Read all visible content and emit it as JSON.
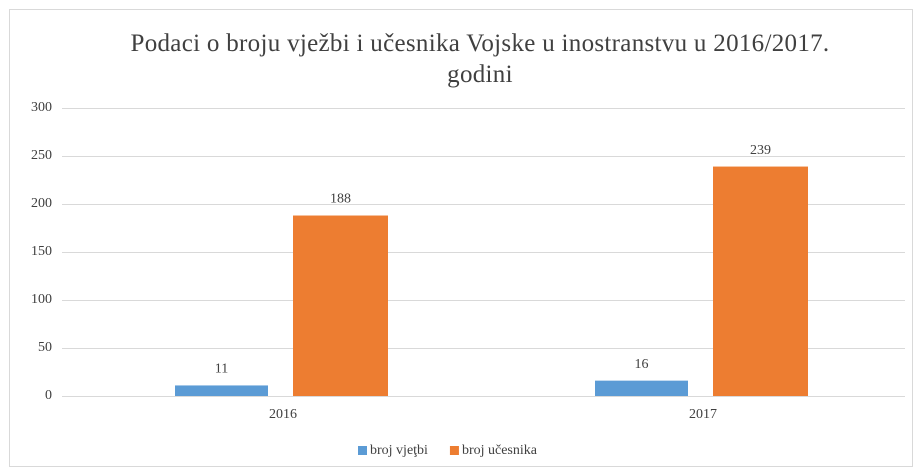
{
  "chart_data": {
    "type": "bar",
    "title": "Podaci o broju vježbi i učesnika Vojske u inostranstvu u 2016/2017. godini",
    "categories": [
      "2016",
      "2017"
    ],
    "series": [
      {
        "name": "broj vjeţbi",
        "color": "#5b9bd5",
        "values": [
          11,
          16
        ]
      },
      {
        "name": "broj učesnika",
        "color": "#ed7d31",
        "values": [
          188,
          239
        ]
      }
    ],
    "ylim": [
      0,
      300
    ],
    "yticks": [
      0,
      50,
      100,
      150,
      200,
      250,
      300
    ],
    "grid": true,
    "legend": "bottom"
  }
}
